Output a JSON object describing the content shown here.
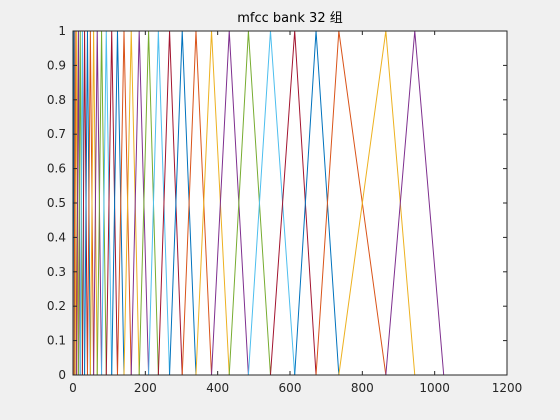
{
  "chart_data": {
    "type": "line",
    "title": "mfcc bank 32 组",
    "xlabel": "",
    "ylabel": "",
    "xlim": [
      0,
      1200
    ],
    "ylim": [
      0,
      1
    ],
    "xticks": [
      0,
      200,
      400,
      600,
      800,
      1000,
      1200
    ],
    "xtick_labels": [
      "0",
      "200",
      "400",
      "600",
      "800",
      "1000",
      "1200"
    ],
    "yticks": [
      0,
      0.1,
      0.2,
      0.3,
      0.4,
      0.5,
      0.6,
      0.7,
      0.8,
      0.9,
      1
    ],
    "ytick_labels": [
      "0",
      "0.1",
      "0.2",
      "0.3",
      "0.4",
      "0.5",
      "0.6",
      "0.7",
      "0.8",
      "0.9",
      "1"
    ],
    "grid": false,
    "legend": false,
    "description_of_series": "32 triangular mel filters; each filter rises linearly from 0 at its left edge to 1 at its center and falls back to 0 at its right edge",
    "filter_edges": [
      0,
      3,
      6,
      10,
      15,
      20,
      26,
      32,
      40,
      48,
      57,
      67,
      79,
      92,
      107,
      123,
      141,
      161,
      183,
      209,
      236,
      267,
      302,
      340,
      383,
      432,
      485,
      546,
      613,
      672,
      735,
      865,
      945,
      1025
    ],
    "color_cycle": [
      "#0072BD",
      "#D95319",
      "#EDB120",
      "#7E2F8E",
      "#77AC30",
      "#4DBEEE",
      "#A2142F"
    ]
  },
  "colors": {
    "figure_background": "#f0f0f0",
    "axes_background": "#ffffff",
    "axes_line": "#262626"
  }
}
